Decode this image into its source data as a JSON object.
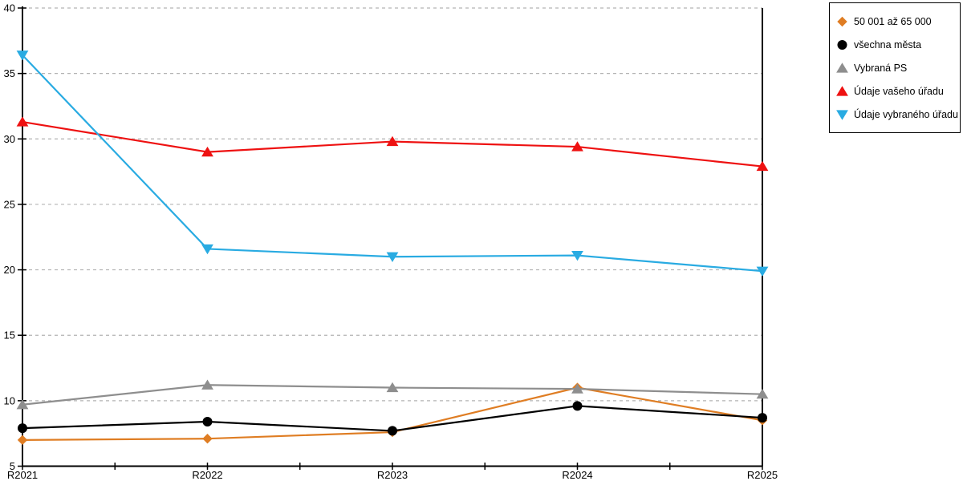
{
  "chart_data": {
    "type": "line",
    "title": "",
    "xlabel": "",
    "ylabel": "",
    "categories": [
      "R2021",
      "R2022",
      "R2023",
      "R2024",
      "R2025"
    ],
    "series": [
      {
        "name": "50 001 až 65 000",
        "marker": "diamond",
        "color": "#DF7D23",
        "values": [
          7.0,
          7.1,
          7.6,
          11.0,
          8.5
        ]
      },
      {
        "name": "všechna města",
        "marker": "circle",
        "color": "#000000",
        "values": [
          7.9,
          8.4,
          7.7,
          9.6,
          8.7
        ]
      },
      {
        "name": "Vybraná PS",
        "marker": "triangle-up",
        "color": "#8E8E8E",
        "values": [
          9.7,
          11.2,
          11.0,
          10.9,
          10.5
        ]
      },
      {
        "name": "Údaje vašeho úřadu",
        "marker": "triangle-up",
        "color": "#EE1111",
        "values": [
          31.3,
          29.0,
          29.8,
          29.4,
          27.9
        ]
      },
      {
        "name": "Údaje vybraného úřadu",
        "marker": "triangle-down",
        "color": "#29ABE2",
        "values": [
          36.4,
          21.6,
          21.0,
          21.1,
          19.9
        ]
      }
    ],
    "ylim": [
      5,
      40
    ],
    "yticks": [
      5,
      10,
      15,
      20,
      25,
      30,
      35,
      40
    ],
    "x_minor_ticks": "midpoints",
    "grid": "horizontal-dashed",
    "grid_color": "#B3B3B3",
    "axis_color": "#000000",
    "legend_position": "top-right"
  }
}
